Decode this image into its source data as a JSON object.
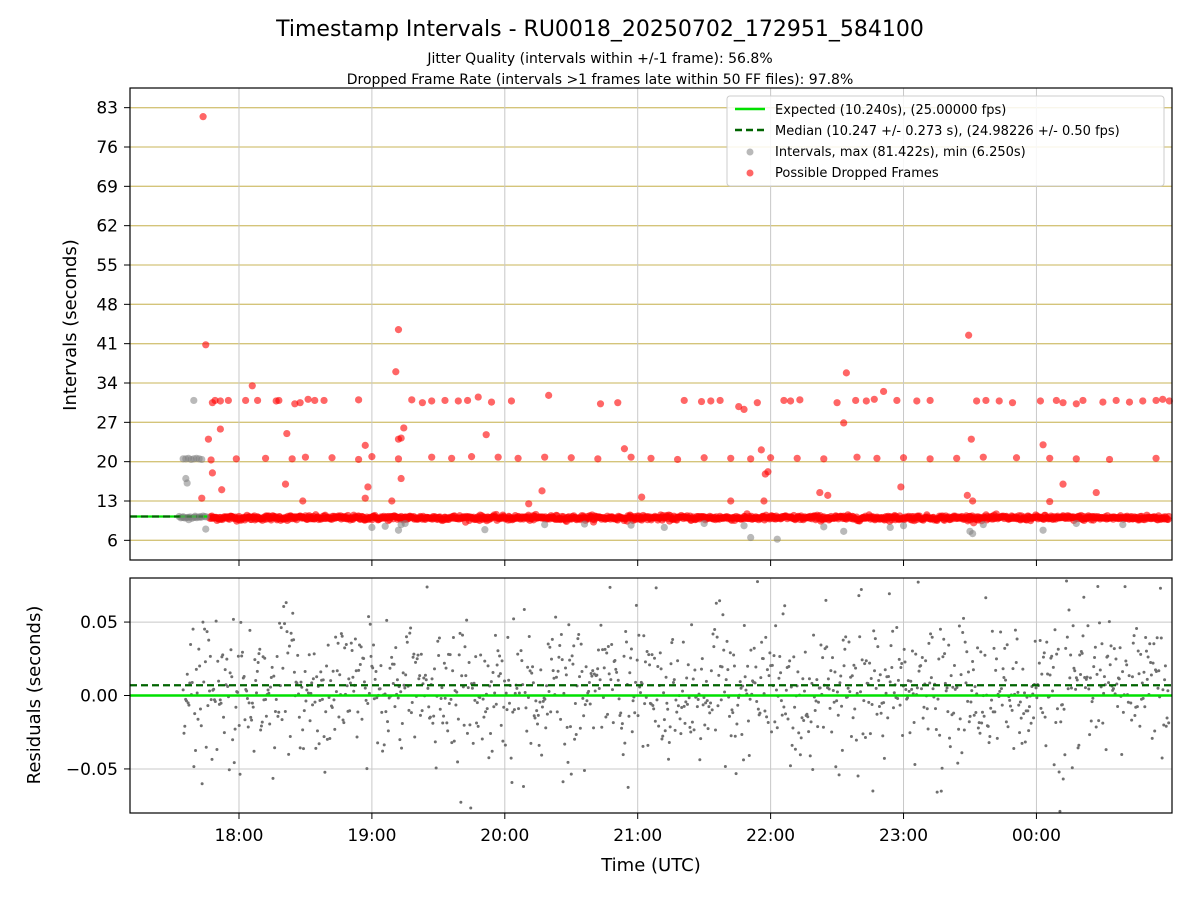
{
  "chart_data": {
    "type": "scatter",
    "title": "Timestamp Intervals - RU0018_20250702_172951_584100",
    "subtitles": [
      "Jitter Quality (intervals within +/-1 frame): 56.8%",
      "Dropped Frame Rate (intervals >1 frames late within 50 FF files): 97.8%"
    ],
    "xlabel": "Time (UTC)",
    "x_tick_labels": [
      "18:00",
      "19:00",
      "20:00",
      "21:00",
      "22:00",
      "23:00",
      "00:00"
    ],
    "x_tick_hours": [
      18,
      19,
      20,
      21,
      22,
      23,
      24
    ],
    "x_range_hours": [
      17.18,
      25.02
    ],
    "top": {
      "ylabel": "Intervals (seconds)",
      "ylim": [
        2.5,
        86.5
      ],
      "yticks": [
        6,
        13,
        20,
        27,
        34,
        41,
        48,
        55,
        62,
        69,
        76,
        83
      ],
      "grid": "horizontal gold, vertical gray",
      "legend_position": "top-right",
      "legend": [
        "Expected (10.240s), (25.00000 fps)",
        "Median (10.247 +/- 0.273 s), (24.98226 +/- 0.50 fps)",
        "Intervals, max (81.422s), min (6.250s)",
        "Possible Dropped Frames"
      ],
      "expected": 10.24,
      "median": 10.247,
      "gray_points": [
        [
          17.58,
          20.5
        ],
        [
          17.6,
          20.5
        ],
        [
          17.62,
          20.6
        ],
        [
          17.64,
          20.4
        ],
        [
          17.66,
          20.5
        ],
        [
          17.68,
          20.6
        ],
        [
          17.7,
          20.5
        ],
        [
          17.72,
          20.4
        ],
        [
          17.6,
          17.0
        ],
        [
          17.61,
          16.2
        ],
        [
          17.66,
          30.9
        ],
        [
          17.75,
          8.0
        ],
        [
          17.58,
          10.2
        ],
        [
          17.62,
          10.1
        ],
        [
          17.67,
          10.3
        ],
        [
          17.71,
          10.2
        ],
        [
          19.0,
          8.3
        ],
        [
          19.1,
          8.5
        ],
        [
          19.2,
          7.8
        ],
        [
          19.22,
          8.8
        ],
        [
          19.25,
          9.0
        ],
        [
          19.85,
          7.9
        ],
        [
          20.3,
          8.8
        ],
        [
          20.6,
          8.9
        ],
        [
          20.95,
          8.7
        ],
        [
          21.2,
          8.3
        ],
        [
          21.5,
          9.0
        ],
        [
          21.8,
          8.6
        ],
        [
          21.85,
          6.5
        ],
        [
          22.05,
          6.2
        ],
        [
          22.4,
          8.4
        ],
        [
          22.55,
          7.6
        ],
        [
          22.9,
          8.3
        ],
        [
          23.0,
          8.6
        ],
        [
          23.5,
          7.6
        ],
        [
          23.52,
          7.2
        ],
        [
          23.6,
          8.8
        ],
        [
          24.05,
          7.8
        ],
        [
          24.3,
          9.0
        ],
        [
          24.65,
          8.8
        ]
      ],
      "red_points": [
        [
          17.73,
          81.4
        ],
        [
          17.75,
          40.8
        ],
        [
          17.77,
          24.0
        ],
        [
          17.8,
          30.5
        ],
        [
          17.82,
          30.9
        ],
        [
          17.86,
          30.8
        ],
        [
          17.79,
          20.3
        ],
        [
          17.8,
          18.0
        ],
        [
          17.72,
          13.5
        ],
        [
          17.87,
          15.0
        ],
        [
          17.86,
          25.8
        ],
        [
          17.92,
          30.9
        ],
        [
          17.98,
          20.5
        ],
        [
          18.05,
          30.9
        ],
        [
          18.1,
          33.5
        ],
        [
          18.14,
          30.9
        ],
        [
          18.28,
          30.8
        ],
        [
          18.3,
          30.9
        ],
        [
          18.42,
          30.3
        ],
        [
          18.46,
          30.5
        ],
        [
          18.52,
          31.1
        ],
        [
          18.57,
          30.9
        ],
        [
          18.64,
          30.9
        ],
        [
          18.36,
          25.0
        ],
        [
          18.35,
          16.0
        ],
        [
          18.48,
          13.0
        ],
        [
          18.9,
          31.0
        ],
        [
          18.95,
          22.9
        ],
        [
          18.95,
          13.5
        ],
        [
          18.97,
          15.5
        ],
        [
          19.15,
          13.0
        ],
        [
          19.18,
          36.0
        ],
        [
          19.2,
          43.5
        ],
        [
          19.22,
          24.2
        ],
        [
          19.24,
          26.0
        ],
        [
          19.2,
          24.0
        ],
        [
          19.22,
          17.0
        ],
        [
          19.3,
          31.0
        ],
        [
          19.38,
          30.5
        ],
        [
          19.45,
          30.8
        ],
        [
          19.55,
          30.9
        ],
        [
          19.65,
          30.8
        ],
        [
          19.72,
          30.9
        ],
        [
          19.8,
          31.5
        ],
        [
          19.86,
          24.8
        ],
        [
          19.9,
          30.6
        ],
        [
          20.05,
          30.8
        ],
        [
          20.18,
          12.5
        ],
        [
          20.28,
          14.8
        ],
        [
          20.33,
          31.8
        ],
        [
          20.72,
          30.3
        ],
        [
          20.85,
          30.5
        ],
        [
          20.9,
          22.3
        ],
        [
          21.03,
          13.7
        ],
        [
          21.35,
          30.9
        ],
        [
          21.48,
          30.7
        ],
        [
          21.55,
          30.8
        ],
        [
          21.62,
          30.9
        ],
        [
          21.7,
          13.0
        ],
        [
          21.76,
          29.8
        ],
        [
          21.8,
          29.3
        ],
        [
          21.9,
          30.5
        ],
        [
          21.93,
          22.1
        ],
        [
          21.95,
          13.0
        ],
        [
          21.96,
          17.8
        ],
        [
          21.98,
          18.2
        ],
        [
          22.1,
          30.9
        ],
        [
          22.15,
          30.8
        ],
        [
          22.22,
          31.0
        ],
        [
          22.37,
          14.5
        ],
        [
          22.43,
          14.0
        ],
        [
          22.5,
          30.5
        ],
        [
          22.55,
          26.9
        ],
        [
          22.57,
          35.8
        ],
        [
          22.64,
          30.9
        ],
        [
          22.72,
          30.8
        ],
        [
          22.78,
          31.1
        ],
        [
          22.85,
          32.5
        ],
        [
          22.95,
          30.9
        ],
        [
          22.98,
          15.5
        ],
        [
          23.1,
          30.8
        ],
        [
          23.2,
          30.9
        ],
        [
          23.49,
          42.5
        ],
        [
          23.48,
          14.0
        ],
        [
          23.52,
          13.0
        ],
        [
          23.51,
          24.0
        ],
        [
          23.55,
          30.8
        ],
        [
          23.62,
          30.9
        ],
        [
          23.72,
          30.8
        ],
        [
          23.82,
          30.5
        ],
        [
          24.03,
          30.8
        ],
        [
          24.05,
          23.0
        ],
        [
          24.1,
          12.9
        ],
        [
          24.15,
          30.9
        ],
        [
          24.2,
          16.0
        ],
        [
          24.2,
          30.5
        ],
        [
          24.3,
          30.3
        ],
        [
          24.35,
          30.9
        ],
        [
          24.45,
          14.5
        ],
        [
          24.5,
          30.6
        ],
        [
          24.6,
          30.9
        ],
        [
          24.7,
          30.6
        ],
        [
          24.8,
          30.8
        ],
        [
          24.9,
          30.9
        ],
        [
          24.95,
          31.1
        ],
        [
          25.0,
          30.8
        ],
        [
          18.2,
          20.6
        ],
        [
          18.4,
          20.5
        ],
        [
          18.5,
          20.8
        ],
        [
          18.7,
          20.7
        ],
        [
          18.9,
          20.4
        ],
        [
          19.0,
          20.9
        ],
        [
          19.2,
          20.5
        ],
        [
          19.45,
          20.8
        ],
        [
          19.6,
          20.6
        ],
        [
          19.75,
          20.9
        ],
        [
          19.95,
          20.8
        ],
        [
          20.1,
          20.6
        ],
        [
          20.3,
          20.8
        ],
        [
          20.5,
          20.7
        ],
        [
          20.7,
          20.5
        ],
        [
          20.95,
          20.8
        ],
        [
          21.1,
          20.6
        ],
        [
          21.3,
          20.4
        ],
        [
          21.5,
          20.7
        ],
        [
          21.7,
          20.6
        ],
        [
          21.85,
          20.5
        ],
        [
          22.0,
          20.7
        ],
        [
          22.2,
          20.6
        ],
        [
          22.4,
          20.5
        ],
        [
          22.65,
          20.8
        ],
        [
          22.8,
          20.6
        ],
        [
          23.0,
          20.7
        ],
        [
          23.2,
          20.5
        ],
        [
          23.4,
          20.6
        ],
        [
          23.6,
          20.8
        ],
        [
          23.85,
          20.7
        ],
        [
          24.1,
          20.6
        ],
        [
          24.3,
          20.5
        ],
        [
          24.55,
          20.4
        ],
        [
          24.9,
          20.6
        ]
      ]
    },
    "bottom": {
      "ylabel": "Residuals (seconds)",
      "ylim": [
        -0.08,
        0.08
      ],
      "ytick_values": [
        0.05,
        0.0,
        -0.05
      ],
      "ytick_labels": [
        "0.05",
        "0.00",
        "−0.05"
      ],
      "expected_residual": 0.0,
      "median_residual": 0.007
    },
    "colors": {
      "expected": "#00e000",
      "median": "#006400",
      "intervals": "#808080",
      "dropped": "#ff0000",
      "h_grid": "#d4c47a",
      "v_grid": "#c8c8c8"
    }
  }
}
